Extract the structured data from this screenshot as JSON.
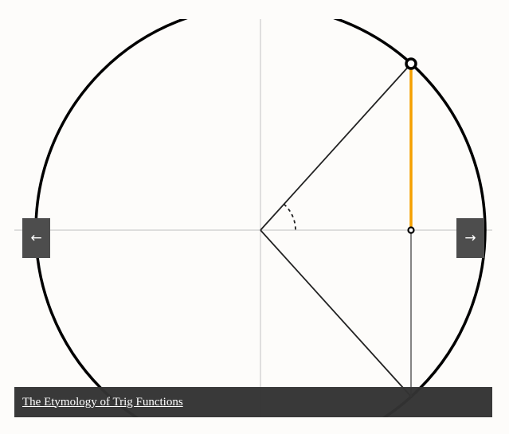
{
  "slideshow": {
    "prev_label": "←",
    "next_label": "→",
    "caption": "The Etymology of Trig Functions"
  },
  "figure": {
    "circle_color": "#000000",
    "axis_color": "#cccccc",
    "highlight_color": "#f5a000",
    "line_color": "#222222"
  }
}
